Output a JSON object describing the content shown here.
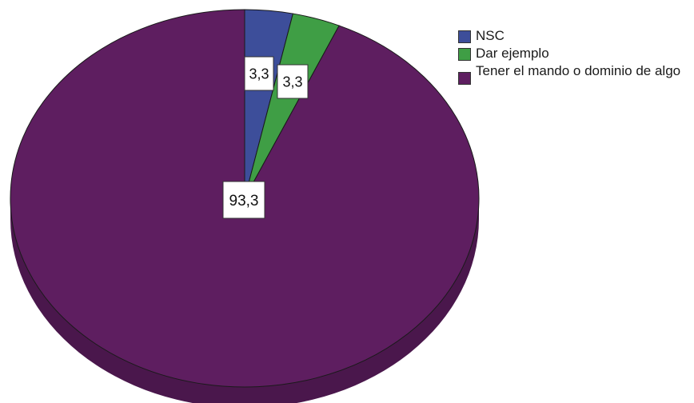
{
  "chart_data": {
    "type": "pie",
    "style": "3d",
    "labels": [
      "NSC",
      "Dar ejemplo",
      "Tener el mando o dominio de algo"
    ],
    "values": [
      3.3,
      3.3,
      93.3
    ],
    "data_labels": [
      "3,3",
      "3,3",
      "93,3"
    ],
    "colors": [
      "#3d4e9a",
      "#3f9e45",
      "#5e1e60"
    ],
    "side_colors": [
      "#2c3a74",
      "#2f7634",
      "#4a174c"
    ],
    "legend_position": "right",
    "title": ""
  },
  "legend": {
    "items": [
      {
        "label": "NSC",
        "color": "#3d4e9a"
      },
      {
        "label": "Dar ejemplo",
        "color": "#3f9e45"
      },
      {
        "label": "Tener el mando o dominio de algo",
        "color": "#5e1e60"
      }
    ]
  }
}
